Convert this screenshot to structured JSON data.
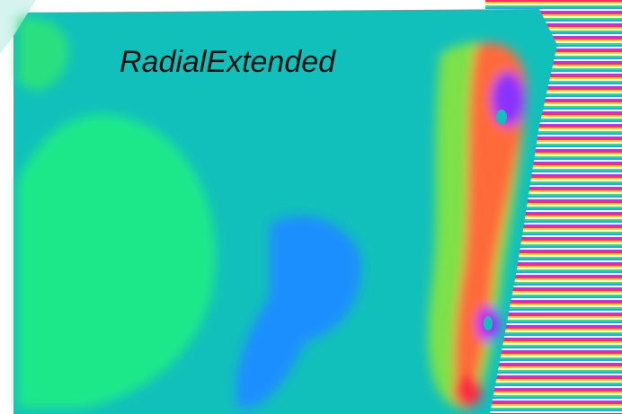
{
  "label": "RadialExtended"
}
